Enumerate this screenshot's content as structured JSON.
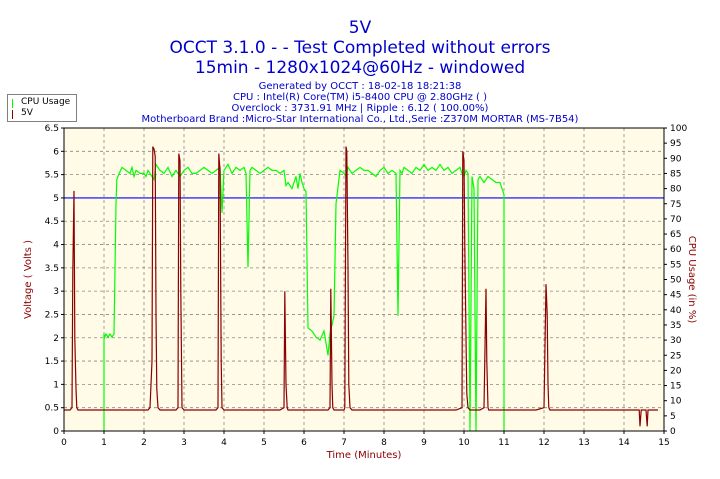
{
  "title": "5V",
  "subtitle_line1": "OCCT 3.1.0 -  - Test Completed without errors",
  "subtitle_line2": "15min - 1280x1024@60Hz - windowed",
  "info": {
    "generated": "Generated by OCCT : 18-02-18 18:21:38",
    "cpu": "CPU : Intel(R) Core(TM) i5-8400 CPU @ 2.80GHz (  )",
    "overclock": "Overclock : 3731.91 MHz | Ripple : 6.12 ( 100.00%)",
    "motherboard": "Motherboard Brand :Micro-Star International Co., Ltd.,Serie :Z370M MORTAR (MS-7B54)"
  },
  "colors": {
    "cpu_usage": "#00ff00",
    "voltage": "#8b0000",
    "reference": "#0000ff",
    "plot_bg": "#fffbe7",
    "axis_label": "#8b0000"
  },
  "chart_data": {
    "type": "line",
    "xlabel": "Time (Minutes)",
    "ylabel_left": "Voltage ( Volts )",
    "ylabel_right": "CPU Usage (in %)",
    "xlim": [
      0,
      15
    ],
    "ylim_left": [
      0,
      6.5
    ],
    "ylim_right": [
      0,
      100
    ],
    "xticks": [
      0,
      1,
      2,
      3,
      4,
      5,
      6,
      7,
      8,
      9,
      10,
      11,
      12,
      13,
      14,
      15
    ],
    "yticks_left": [
      0,
      0.5,
      1,
      1.5,
      2,
      2.5,
      3,
      3.5,
      4,
      4.5,
      5,
      5.5,
      6,
      6.5
    ],
    "yticks_right": [
      0,
      5,
      10,
      15,
      20,
      25,
      30,
      35,
      40,
      45,
      50,
      55,
      60,
      65,
      70,
      75,
      80,
      85,
      90,
      95,
      100
    ],
    "grid": true,
    "legend_position": "top-left",
    "reference_line": {
      "axis": "left",
      "value": 5.0
    },
    "series": [
      {
        "name": "CPU Usage",
        "axis": "right",
        "x": [
          1.0,
          1.0,
          1.02,
          1.05,
          1.1,
          1.15,
          1.2,
          1.25,
          1.3,
          1.32,
          1.38,
          1.45,
          1.55,
          1.65,
          1.7,
          1.75,
          1.8,
          1.9,
          2.0,
          2.05,
          2.1,
          2.15,
          2.2,
          2.25,
          2.3,
          2.4,
          2.5,
          2.55,
          2.6,
          2.7,
          2.8,
          2.85,
          2.9,
          3.0,
          3.1,
          3.2,
          3.3,
          3.4,
          3.5,
          3.6,
          3.7,
          3.8,
          3.9,
          3.95,
          4.0,
          4.1,
          4.2,
          4.3,
          4.4,
          4.5,
          4.55,
          4.6,
          4.65,
          4.7,
          4.8,
          4.9,
          5.0,
          5.1,
          5.2,
          5.3,
          5.4,
          5.5,
          5.55,
          5.6,
          5.7,
          5.8,
          5.85,
          5.9,
          5.95,
          6.0,
          6.05,
          6.1,
          6.2,
          6.3,
          6.4,
          6.5,
          6.55,
          6.6,
          6.65,
          6.7,
          6.75,
          6.8,
          6.9,
          7.0,
          7.05,
          7.1,
          7.2,
          7.3,
          7.4,
          7.5,
          7.6,
          7.7,
          7.8,
          7.9,
          8.0,
          8.1,
          8.2,
          8.3,
          8.35,
          8.4,
          8.45,
          8.5,
          8.6,
          8.7,
          8.8,
          8.9,
          9.0,
          9.1,
          9.2,
          9.3,
          9.4,
          9.5,
          9.6,
          9.7,
          9.8,
          9.9,
          9.95,
          10.0,
          10.05,
          10.1,
          10.15,
          10.2,
          10.25,
          10.3,
          10.35,
          10.4,
          10.45,
          10.5,
          10.6,
          10.7,
          10.8,
          10.9,
          11.0,
          11.0
        ],
        "values": [
          0,
          32,
          31,
          32,
          31,
          32,
          31,
          32,
          75,
          83,
          85,
          87,
          86,
          85,
          87,
          84,
          86,
          85,
          85,
          84,
          86,
          85,
          84,
          83,
          88,
          86,
          85,
          86,
          87,
          84,
          86,
          85,
          84,
          86,
          87,
          85,
          85,
          86,
          87,
          86,
          85,
          86,
          87,
          72,
          86,
          88,
          85,
          87,
          86,
          87,
          85,
          54,
          86,
          87,
          86,
          85,
          86,
          87,
          86,
          86,
          85,
          86,
          81,
          82,
          80,
          84,
          80,
          85,
          82,
          80,
          79,
          34,
          33,
          31,
          30,
          33,
          29,
          25,
          32,
          35,
          38,
          75,
          86,
          85,
          84,
          87,
          85,
          86,
          87,
          86,
          86,
          85,
          84,
          86,
          87,
          85,
          86,
          85,
          38,
          86,
          85,
          87,
          86,
          85,
          87,
          86,
          88,
          86,
          87,
          86,
          88,
          86,
          87,
          85,
          86,
          87,
          85,
          84,
          86,
          85,
          0,
          84,
          80,
          0,
          83,
          84,
          83,
          82,
          84,
          83,
          82,
          82,
          78,
          0
        ]
      },
      {
        "name": "5V",
        "axis": "left",
        "x": [
          0,
          0.15,
          0.2,
          0.22,
          0.25,
          0.27,
          0.3,
          0.32,
          0.35,
          0.4,
          0.6,
          0.8,
          1.0,
          1.2,
          1.4,
          1.6,
          1.8,
          2.0,
          2.1,
          2.15,
          2.2,
          2.22,
          2.25,
          2.28,
          2.3,
          2.32,
          2.35,
          2.4,
          2.6,
          2.8,
          2.85,
          2.87,
          2.9,
          2.92,
          2.95,
          3.0,
          3.2,
          3.4,
          3.6,
          3.8,
          3.85,
          3.87,
          3.9,
          3.93,
          3.95,
          4.0,
          4.2,
          4.4,
          4.6,
          4.8,
          5.0,
          5.2,
          5.4,
          5.5,
          5.52,
          5.55,
          5.58,
          5.6,
          5.8,
          6.0,
          6.2,
          6.4,
          6.6,
          6.65,
          6.67,
          6.7,
          6.72,
          6.75,
          6.8,
          7.0,
          7.02,
          7.05,
          7.07,
          7.1,
          7.12,
          7.15,
          7.2,
          7.4,
          7.6,
          7.8,
          8.0,
          8.2,
          8.4,
          8.6,
          8.8,
          9.0,
          9.2,
          9.4,
          9.6,
          9.8,
          9.95,
          9.97,
          10.0,
          10.02,
          10.05,
          10.07,
          10.1,
          10.15,
          10.2,
          10.3,
          10.4,
          10.5,
          10.55,
          10.57,
          10.6,
          10.62,
          10.65,
          10.7,
          10.8,
          10.9,
          11.0,
          11.2,
          11.4,
          11.6,
          11.8,
          12.0,
          12.05,
          12.08,
          12.1,
          12.12,
          12.15,
          12.2,
          12.4,
          12.6,
          12.8,
          13.0,
          13.2,
          13.4,
          13.6,
          13.8,
          14.0,
          14.2,
          14.35,
          14.38,
          14.4,
          14.43,
          14.45,
          14.5,
          14.55,
          14.58,
          14.6,
          14.63,
          14.65,
          14.7,
          14.8,
          14.85
        ],
        "values": [
          0.45,
          0.45,
          0.5,
          3.4,
          5.15,
          2.0,
          0.9,
          0.5,
          0.45,
          0.45,
          0.45,
          0.45,
          0.45,
          0.45,
          0.45,
          0.45,
          0.45,
          0.45,
          0.45,
          0.5,
          1.5,
          6.1,
          6.05,
          5.9,
          2.5,
          0.9,
          0.5,
          0.45,
          0.45,
          0.45,
          0.5,
          5.95,
          5.8,
          3.0,
          0.5,
          0.45,
          0.45,
          0.45,
          0.45,
          0.45,
          0.5,
          5.95,
          5.6,
          1.5,
          0.5,
          0.45,
          0.45,
          0.45,
          0.45,
          0.45,
          0.45,
          0.45,
          0.45,
          0.5,
          3.0,
          1.0,
          0.5,
          0.45,
          0.45,
          0.45,
          0.45,
          0.45,
          0.45,
          0.5,
          3.05,
          1.0,
          0.5,
          0.45,
          0.45,
          0.45,
          0.5,
          6.1,
          6.0,
          3.5,
          1.0,
          0.5,
          0.45,
          0.45,
          0.45,
          0.45,
          0.45,
          0.45,
          0.45,
          0.45,
          0.45,
          0.45,
          0.45,
          0.45,
          0.45,
          0.45,
          0.5,
          6.0,
          5.8,
          4.0,
          2.0,
          0.8,
          0.5,
          0.45,
          0.45,
          0.45,
          0.45,
          0.5,
          3.05,
          1.5,
          0.5,
          0.45,
          0.45,
          0.45,
          0.45,
          0.45,
          0.45,
          0.45,
          0.45,
          0.45,
          0.45,
          0.5,
          3.15,
          2.5,
          1.0,
          0.5,
          0.45,
          0.45,
          0.45,
          0.45,
          0.45,
          0.45,
          0.45,
          0.45,
          0.45,
          0.45,
          0.45,
          0.45,
          0.45,
          0.45,
          0.1,
          0.45,
          0.45,
          0.45,
          0.45,
          0.1,
          0.45,
          0.45,
          0.45,
          0.45,
          0.45,
          0.45
        ]
      }
    ]
  }
}
